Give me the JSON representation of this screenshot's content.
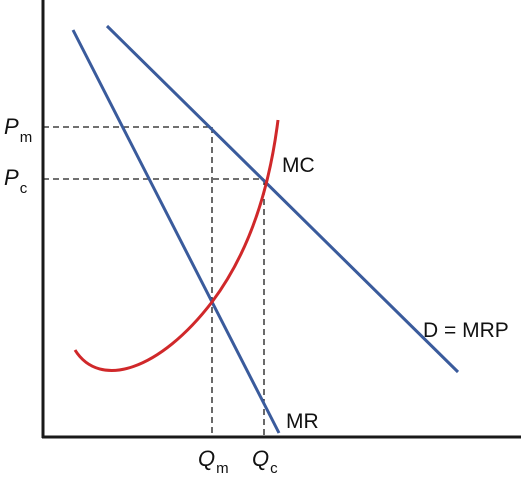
{
  "labels": {
    "p_m": "P",
    "p_m_sub": "m",
    "p_c": "P",
    "p_c_sub": "c",
    "q_m": "Q",
    "q_m_sub": "m",
    "q_c": "Q",
    "q_c_sub": "c",
    "mc": "MC",
    "mr": "MR",
    "demand": "D = MRP"
  },
  "colors": {
    "axis": "#1a1a1a",
    "demand": "#3a5b9c",
    "mr": "#3a5b9c",
    "mc": "#d0282a",
    "guides": "#1a1a1a"
  }
}
